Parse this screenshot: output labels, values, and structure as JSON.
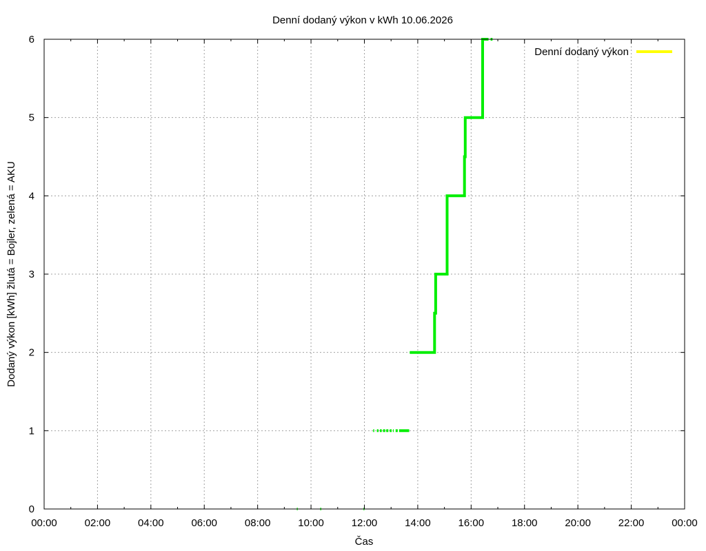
{
  "chart_data": {
    "type": "line",
    "title": "Denní dodaný výkon v kWh 10.06.2026",
    "xlabel": "Čas",
    "ylabel": "Dodaný výkon [kWh]  žlutá = Bojler, zelená = AKU",
    "xlim": [
      0,
      24
    ],
    "ylim": [
      0,
      6
    ],
    "x_ticks": [
      0,
      2,
      4,
      6,
      8,
      10,
      12,
      14,
      16,
      18,
      20,
      22,
      24
    ],
    "x_tick_labels": [
      "00:00",
      "02:00",
      "04:00",
      "06:00",
      "08:00",
      "10:00",
      "12:00",
      "14:00",
      "16:00",
      "18:00",
      "20:00",
      "22:00",
      "00:00"
    ],
    "y_ticks": [
      0,
      1,
      2,
      3,
      4,
      5,
      6
    ],
    "y_tick_labels": [
      "0",
      "1",
      "2",
      "3",
      "4",
      "5",
      "6"
    ],
    "grid": true,
    "legend_position": "top-right",
    "series": [
      {
        "name": "Denní dodaný výkon",
        "color": "#ffff00",
        "points": []
      },
      {
        "color": "#00ee00",
        "segments": [
          [
            [
              9.47,
              0
            ],
            [
              9.5,
              0
            ]
          ],
          [
            [
              10.35,
              0
            ],
            [
              10.38,
              0
            ]
          ],
          [
            [
              11.97,
              0
            ],
            [
              12.0,
              0
            ]
          ],
          [
            [
              12.33,
              1
            ],
            [
              12.37,
              1
            ]
          ],
          [
            [
              12.47,
              1
            ],
            [
              12.53,
              1
            ]
          ],
          [
            [
              12.58,
              1
            ],
            [
              12.65,
              1
            ]
          ],
          [
            [
              12.7,
              1
            ],
            [
              12.78,
              1
            ]
          ],
          [
            [
              12.82,
              1
            ],
            [
              12.9,
              1
            ]
          ],
          [
            [
              12.95,
              1
            ],
            [
              13.02,
              1
            ]
          ],
          [
            [
              13.07,
              1
            ],
            [
              13.1,
              1
            ]
          ],
          [
            [
              13.17,
              1
            ],
            [
              13.25,
              1
            ]
          ],
          [
            [
              13.3,
              1
            ],
            [
              13.68,
              1
            ]
          ],
          [
            [
              13.7,
              2
            ],
            [
              14.63,
              2
            ],
            [
              14.63,
              2.5
            ],
            [
              14.67,
              2.5
            ],
            [
              14.67,
              3
            ],
            [
              15.1,
              3
            ],
            [
              15.1,
              4
            ],
            [
              15.75,
              4
            ],
            [
              15.75,
              4.5
            ],
            [
              15.78,
              4.5
            ],
            [
              15.78,
              5
            ],
            [
              16.43,
              5
            ],
            [
              16.43,
              6
            ],
            [
              16.65,
              6
            ]
          ],
          [
            [
              16.73,
              6
            ],
            [
              16.8,
              6
            ]
          ]
        ]
      }
    ]
  }
}
